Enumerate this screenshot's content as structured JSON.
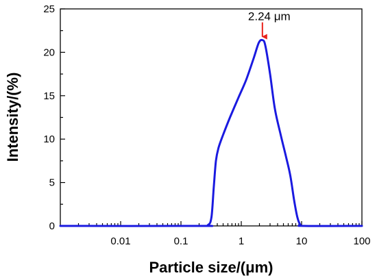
{
  "chart_data": {
    "type": "line",
    "title": "",
    "xlabel": "Particle size/(μm)",
    "ylabel": "Intensity/(%)",
    "x_scale": "log",
    "xlim": [
      0.001,
      100
    ],
    "ylim": [
      0,
      25
    ],
    "x_ticks": [
      {
        "value": 0.01,
        "label": "0.01"
      },
      {
        "value": 0.1,
        "label": "0.1"
      },
      {
        "value": 1,
        "label": "1"
      },
      {
        "value": 10,
        "label": "10"
      },
      {
        "value": 100,
        "label": "100"
      }
    ],
    "y_ticks": [
      {
        "value": 0,
        "label": "0"
      },
      {
        "value": 5,
        "label": "5"
      },
      {
        "value": 10,
        "label": "10"
      },
      {
        "value": 15,
        "label": "15"
      },
      {
        "value": 20,
        "label": "20"
      },
      {
        "value": 25,
        "label": "25"
      }
    ],
    "grid": false,
    "legend": "none",
    "series": [
      {
        "color": "#1a1ae0",
        "points": [
          [
            0.001,
            0
          ],
          [
            0.2,
            0
          ],
          [
            0.28,
            0.1
          ],
          [
            0.32,
            1.0
          ],
          [
            0.35,
            4.5
          ],
          [
            0.38,
            7.5
          ],
          [
            0.42,
            9.0
          ],
          [
            0.5,
            10.5
          ],
          [
            0.65,
            12.5
          ],
          [
            0.9,
            14.8
          ],
          [
            1.2,
            16.8
          ],
          [
            1.6,
            19.3
          ],
          [
            1.95,
            21.1
          ],
          [
            2.24,
            21.4
          ],
          [
            2.5,
            20.8
          ],
          [
            3.0,
            17.5
          ],
          [
            3.6,
            13.5
          ],
          [
            4.5,
            10.5
          ],
          [
            5.5,
            8.0
          ],
          [
            6.5,
            5.8
          ],
          [
            7.5,
            3.0
          ],
          [
            8.5,
            1.0
          ],
          [
            9.5,
            0.15
          ],
          [
            11,
            0
          ],
          [
            100,
            0
          ]
        ]
      }
    ],
    "annotations": [
      {
        "text": "2.24 μm",
        "x": 2.24,
        "y": 21.4,
        "arrow_color": "#e8211a"
      }
    ]
  }
}
